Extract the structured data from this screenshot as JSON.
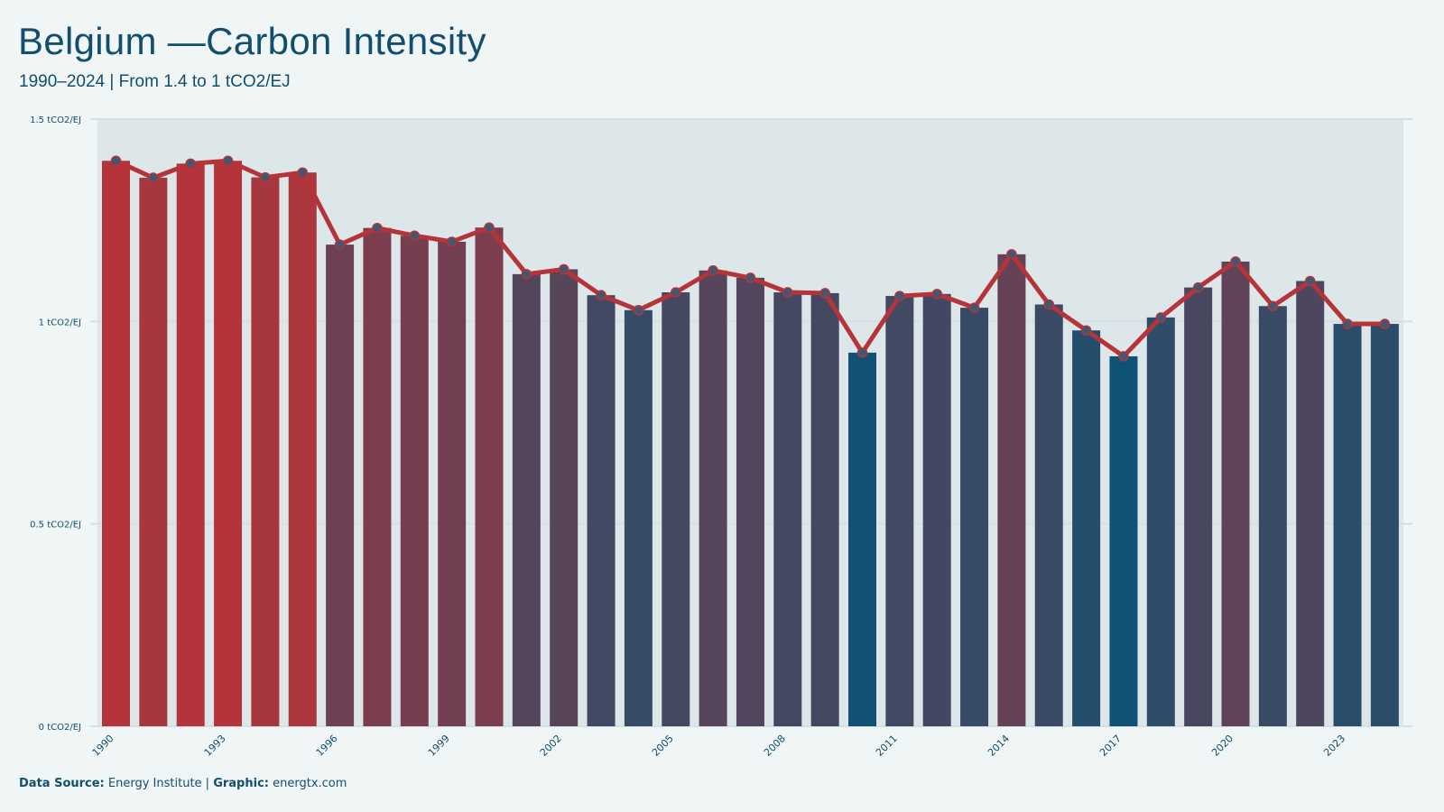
{
  "title": "Belgium —Carbon Intensity",
  "subtitle": "1990–2024 | From 1.4 to 1 tCO2/EJ",
  "footer": {
    "source_label": "Data Source:",
    "source_value": "Energy Institute |",
    "graphic_label": "Graphic:",
    "graphic_value": "energtx.com"
  },
  "colors": {
    "high": "#b5343a",
    "low": "#0e5274",
    "line": "#b5343a",
    "marker": "#3f5873",
    "grid": "#d3e0e5",
    "plot_band": "#dde6e8",
    "text": "#124e6d"
  },
  "chart_data": {
    "type": "bar",
    "overlay": "line",
    "x": [
      1990,
      1991,
      1992,
      1993,
      1994,
      1995,
      1996,
      1997,
      1998,
      1999,
      2000,
      2001,
      2002,
      2003,
      2004,
      2005,
      2006,
      2007,
      2008,
      2009,
      2010,
      2011,
      2012,
      2013,
      2014,
      2015,
      2016,
      2017,
      2018,
      2019,
      2020,
      2021,
      2022,
      2023,
      2024
    ],
    "values": [
      1.397,
      1.355,
      1.39,
      1.397,
      1.356,
      1.368,
      1.19,
      1.231,
      1.212,
      1.197,
      1.232,
      1.117,
      1.129,
      1.065,
      1.028,
      1.072,
      1.126,
      1.108,
      1.072,
      1.07,
      0.923,
      1.063,
      1.068,
      1.034,
      1.166,
      1.042,
      0.978,
      0.914,
      1.01,
      1.084,
      1.148,
      1.038,
      1.1,
      0.994,
      0.994
    ],
    "y_ticks": [
      "0 tCO2/EJ",
      "0.5 tCO2/EJ",
      "1 tCO2/EJ",
      "1.5 tCO2/EJ"
    ],
    "y_tick_values": [
      0,
      0.5,
      1,
      1.5
    ],
    "x_tick_labels": [
      "1990",
      "1993",
      "1996",
      "1999",
      "2002",
      "2005",
      "2008",
      "2011",
      "2014",
      "2017",
      "2020",
      "2023"
    ],
    "ylim": [
      0,
      1.5
    ],
    "grid": true,
    "xlabel": "",
    "ylabel": "",
    "unit": "tCO2/EJ"
  }
}
